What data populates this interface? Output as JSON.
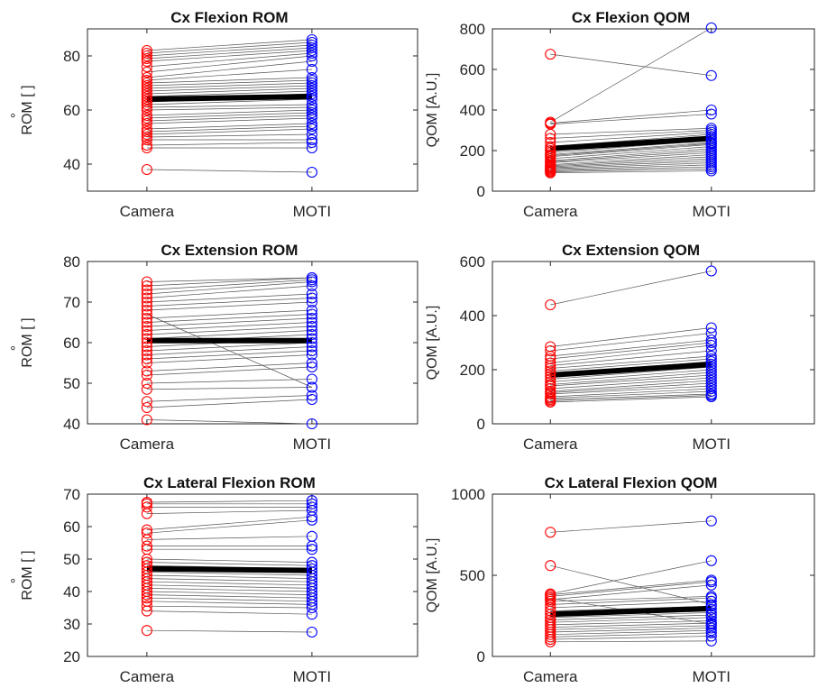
{
  "colors": {
    "camera": "#ff0000",
    "moti": "#0000ff",
    "pair_line": "#555555",
    "mean_line": "#000000",
    "axis": "#262626"
  },
  "chart_data": [
    {
      "type": "line",
      "title": "Cx Flexion ROM",
      "ylabel": "ROM [ ]",
      "ylabel_degree": "°",
      "categories": [
        "Camera",
        "MOTI"
      ],
      "ylim": [
        30,
        90
      ],
      "yticks": [
        40,
        60,
        80
      ],
      "mean": [
        64,
        65
      ],
      "pairs": [
        [
          38,
          37
        ],
        [
          46,
          46
        ],
        [
          47,
          48
        ],
        [
          49,
          49
        ],
        [
          50,
          51
        ],
        [
          51,
          53
        ],
        [
          52,
          54
        ],
        [
          53,
          55
        ],
        [
          55,
          57
        ],
        [
          56,
          58
        ],
        [
          57,
          59
        ],
        [
          58,
          60
        ],
        [
          60,
          61
        ],
        [
          61,
          62
        ],
        [
          62,
          64
        ],
        [
          63,
          65
        ],
        [
          64,
          66
        ],
        [
          65,
          67
        ],
        [
          66,
          68
        ],
        [
          67,
          69
        ],
        [
          68,
          70
        ],
        [
          69,
          71
        ],
        [
          70,
          72
        ],
        [
          71,
          75
        ],
        [
          72,
          78
        ],
        [
          74,
          80
        ],
        [
          76,
          81
        ],
        [
          78,
          82
        ],
        [
          79,
          83
        ],
        [
          80,
          84
        ],
        [
          81,
          85
        ],
        [
          82,
          86
        ]
      ]
    },
    {
      "type": "line",
      "title": "Cx Flexion QOM",
      "ylabel": "QOM [A.U.]",
      "categories": [
        "Camera",
        "MOTI"
      ],
      "ylim": [
        0,
        800
      ],
      "yticks": [
        0,
        200,
        400,
        600,
        800
      ],
      "mean": [
        210,
        260
      ],
      "pairs": [
        [
          675,
          570
        ],
        [
          340,
          805
        ],
        [
          335,
          400
        ],
        [
          330,
          380
        ],
        [
          280,
          310
        ],
        [
          260,
          300
        ],
        [
          240,
          290
        ],
        [
          220,
          280
        ],
        [
          210,
          270
        ],
        [
          200,
          260
        ],
        [
          190,
          250
        ],
        [
          180,
          240
        ],
        [
          175,
          235
        ],
        [
          170,
          230
        ],
        [
          160,
          220
        ],
        [
          150,
          210
        ],
        [
          145,
          200
        ],
        [
          140,
          190
        ],
        [
          130,
          180
        ],
        [
          125,
          170
        ],
        [
          120,
          160
        ],
        [
          115,
          150
        ],
        [
          110,
          140
        ],
        [
          105,
          130
        ],
        [
          100,
          120
        ],
        [
          95,
          110
        ],
        [
          90,
          100
        ]
      ]
    },
    {
      "type": "line",
      "title": "Cx Extension ROM",
      "ylabel": "ROM [ ]",
      "ylabel_degree": "°",
      "categories": [
        "Camera",
        "MOTI"
      ],
      "ylim": [
        40,
        80
      ],
      "yticks": [
        40,
        50,
        60,
        70,
        80
      ],
      "mean": [
        60.5,
        60.5
      ],
      "pairs": [
        [
          41,
          40
        ],
        [
          44,
          46
        ],
        [
          45.5,
          47
        ],
        [
          48.5,
          49
        ],
        [
          50,
          51
        ],
        [
          52,
          54
        ],
        [
          53,
          55
        ],
        [
          55,
          57
        ],
        [
          56,
          58
        ],
        [
          57,
          59
        ],
        [
          58,
          60
        ],
        [
          59,
          61
        ],
        [
          60,
          62
        ],
        [
          61,
          63
        ],
        [
          62,
          64
        ],
        [
          63,
          65
        ],
        [
          64,
          66
        ],
        [
          65,
          67
        ],
        [
          66,
          68
        ],
        [
          67,
          49
        ],
        [
          68,
          70
        ],
        [
          69,
          71
        ],
        [
          70,
          72
        ],
        [
          71,
          74
        ],
        [
          72,
          75
        ],
        [
          73,
          75.5
        ],
        [
          74,
          76
        ],
        [
          75,
          76
        ]
      ]
    },
    {
      "type": "line",
      "title": "Cx Extension QOM",
      "ylabel": "QOM [A.U.]",
      "categories": [
        "Camera",
        "MOTI"
      ],
      "ylim": [
        0,
        600
      ],
      "yticks": [
        0,
        200,
        400,
        600
      ],
      "mean": [
        180,
        220
      ],
      "pairs": [
        [
          440,
          565
        ],
        [
          285,
          355
        ],
        [
          270,
          335
        ],
        [
          250,
          310
        ],
        [
          240,
          300
        ],
        [
          225,
          290
        ],
        [
          215,
          270
        ],
        [
          205,
          250
        ],
        [
          195,
          240
        ],
        [
          185,
          230
        ],
        [
          175,
          220
        ],
        [
          165,
          210
        ],
        [
          155,
          200
        ],
        [
          145,
          190
        ],
        [
          140,
          180
        ],
        [
          130,
          170
        ],
        [
          120,
          160
        ],
        [
          115,
          150
        ],
        [
          110,
          140
        ],
        [
          100,
          130
        ],
        [
          95,
          120
        ],
        [
          90,
          110
        ],
        [
          85,
          105
        ],
        [
          80,
          100
        ]
      ]
    },
    {
      "type": "line",
      "title": "Cx Lateral Flexion ROM",
      "ylabel": "ROM [ ]",
      "ylabel_degree": "°",
      "categories": [
        "Camera",
        "MOTI"
      ],
      "ylim": [
        20,
        70
      ],
      "yticks": [
        20,
        30,
        40,
        50,
        60,
        70
      ],
      "mean": [
        47,
        46.5
      ],
      "pairs": [
        [
          28,
          27.5
        ],
        [
          34,
          33
        ],
        [
          35.5,
          35
        ],
        [
          37,
          36
        ],
        [
          38,
          37
        ],
        [
          39,
          38
        ],
        [
          40,
          39
        ],
        [
          41,
          40
        ],
        [
          42,
          41
        ],
        [
          43,
          42
        ],
        [
          44,
          43
        ],
        [
          45,
          44
        ],
        [
          46,
          45
        ],
        [
          47,
          46
        ],
        [
          48,
          47
        ],
        [
          49,
          48
        ],
        [
          50,
          49
        ],
        [
          53,
          53
        ],
        [
          54,
          54
        ],
        [
          56,
          57
        ],
        [
          58,
          62
        ],
        [
          59,
          63
        ],
        [
          64,
          65
        ],
        [
          66,
          66
        ],
        [
          67,
          67
        ],
        [
          67.5,
          68
        ]
      ]
    },
    {
      "type": "line",
      "title": "Cx Lateral Flexion QOM",
      "ylabel": "QOM [A.U.]",
      "categories": [
        "Camera",
        "MOTI"
      ],
      "ylim": [
        0,
        1000
      ],
      "yticks": [
        0,
        500,
        1000
      ],
      "mean": [
        260,
        295
      ],
      "pairs": [
        [
          765,
          835
        ],
        [
          560,
          320
        ],
        [
          385,
          590
        ],
        [
          380,
          470
        ],
        [
          370,
          460
        ],
        [
          360,
          200
        ],
        [
          350,
          440
        ],
        [
          340,
          370
        ],
        [
          320,
          360
        ],
        [
          300,
          340
        ],
        [
          280,
          310
        ],
        [
          260,
          290
        ],
        [
          240,
          270
        ],
        [
          225,
          255
        ],
        [
          210,
          240
        ],
        [
          195,
          220
        ],
        [
          180,
          205
        ],
        [
          165,
          190
        ],
        [
          150,
          175
        ],
        [
          135,
          160
        ],
        [
          120,
          145
        ],
        [
          105,
          125
        ],
        [
          90,
          95
        ]
      ]
    }
  ]
}
